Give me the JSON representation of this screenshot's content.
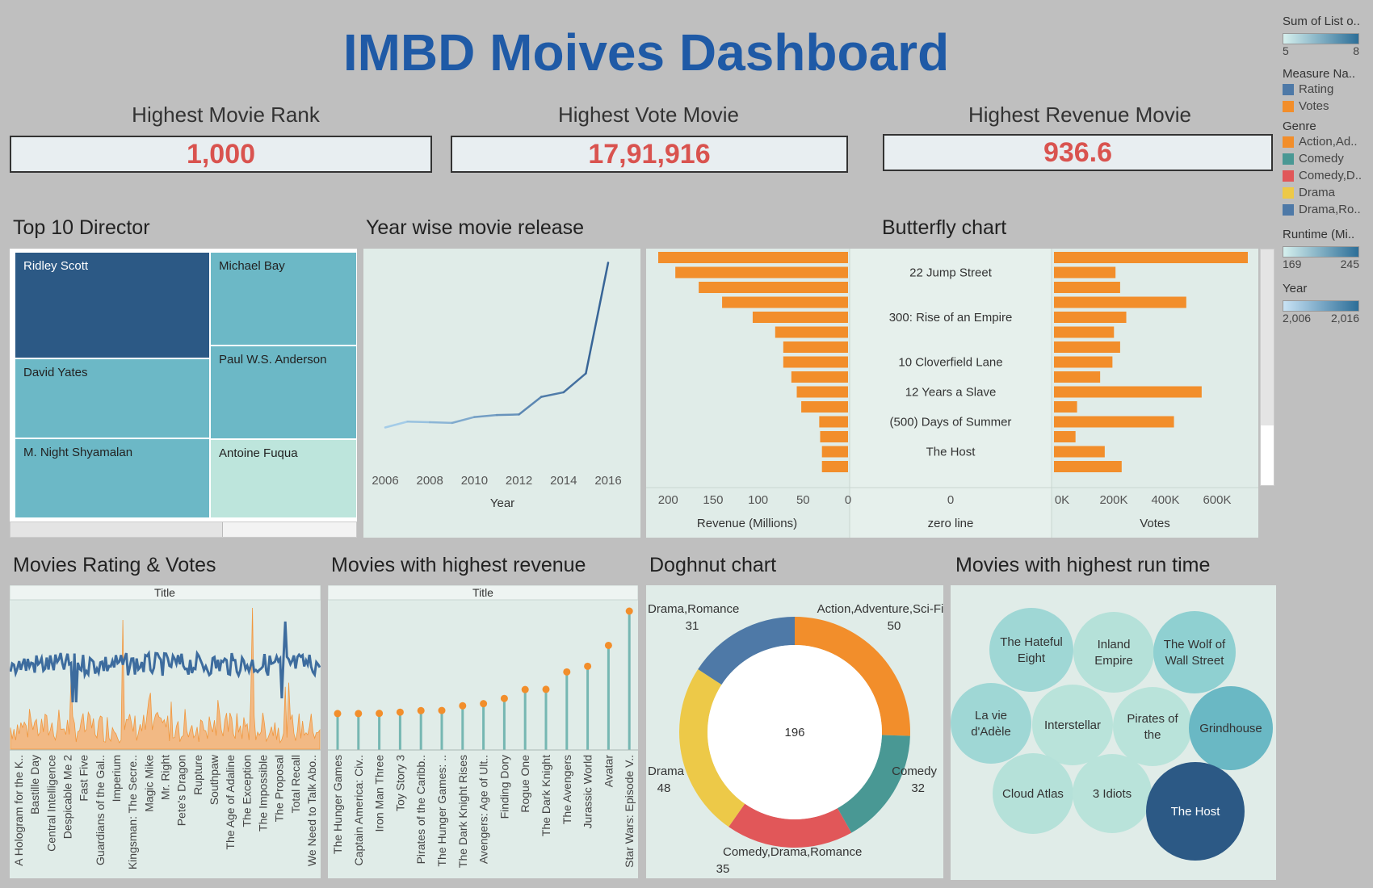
{
  "title": "IMBD Moives Dashboard",
  "kpis": [
    {
      "label": "Highest Movie Rank",
      "value": "1,000"
    },
    {
      "label": "Highest Vote Movie",
      "value": "17,91,916"
    },
    {
      "label": "Highest Revenue Movie",
      "value": "936.6"
    }
  ],
  "sections": {
    "directors": "Top 10 Director",
    "yearwise": "Year wise movie release",
    "butterfly": "Butterfly chart",
    "rating_votes": "Movies Rating & Votes",
    "revenue": "Movies with highest revenue",
    "doughnut": "Doghnut chart",
    "runtime": "Movies with highest run time"
  },
  "legend": {
    "sum_list": {
      "title": "Sum of List o..",
      "min": "5",
      "max": "8"
    },
    "measure": {
      "title": "Measure Na..",
      "items": [
        {
          "label": "Rating",
          "color": "#4e79a7"
        },
        {
          "label": "Votes",
          "color": "#f28e2b"
        }
      ]
    },
    "genre": {
      "title": "Genre",
      "items": [
        {
          "label": "Action,Ad..",
          "color": "#f28e2b"
        },
        {
          "label": "Comedy",
          "color": "#499894"
        },
        {
          "label": "Comedy,D..",
          "color": "#e15759"
        },
        {
          "label": "Drama",
          "color": "#edc948"
        },
        {
          "label": "Drama,Ro..",
          "color": "#4e79a7"
        }
      ]
    },
    "runtime": {
      "title": "Runtime (Mi..",
      "min": "169",
      "max": "245"
    },
    "year": {
      "title": "Year",
      "min": "2,006",
      "max": "2,016"
    }
  },
  "chart_data": [
    {
      "type": "treemap",
      "title": "Top 10 Director",
      "items": [
        {
          "label": "Ridley Scott",
          "color": "#2c5985"
        },
        {
          "label": "Michael Bay",
          "color": "#6cb8c6"
        },
        {
          "label": "David Yates",
          "color": "#6cb8c6"
        },
        {
          "label": "Paul W.S. Anderson",
          "color": "#6cb8c6"
        },
        {
          "label": "M. Night Shyamalan",
          "color": "#6cb8c6"
        },
        {
          "label": "Antoine Fuqua",
          "color": "#bde5dc"
        }
      ]
    },
    {
      "type": "line",
      "title": "Year wise movie release",
      "xlabel": "Year",
      "x": [
        2006,
        2007,
        2008,
        2009,
        2010,
        2011,
        2012,
        2013,
        2014,
        2015,
        2016
      ],
      "y": [
        44,
        53,
        52,
        51,
        60,
        63,
        64,
        91,
        98,
        127,
        297
      ],
      "xticks": [
        "2006",
        "2008",
        "2010",
        "2012",
        "2014",
        "2016"
      ]
    },
    {
      "type": "bar",
      "title": "Butterfly chart",
      "categories": [
        "",
        "22 Jump Street",
        "",
        "",
        "300: Rise of an Empire",
        "",
        "",
        "10 Cloverfield Lane",
        "",
        "12 Years a Slave",
        "",
        "(500) Days of Summer",
        "",
        "The Host",
        ""
      ],
      "revenue": [
        211,
        192,
        166,
        140,
        106,
        81,
        72,
        72,
        63,
        57,
        52,
        32,
        31,
        29,
        29
      ],
      "votes": [
        630,
        200,
        215,
        430,
        235,
        195,
        215,
        190,
        150,
        480,
        75,
        390,
        70,
        165,
        220
      ],
      "left_label": "Revenue (Millions)",
      "center_label": "zero line",
      "right_label": "Votes",
      "left_ticks": [
        "200",
        "150",
        "100",
        "50",
        "0"
      ],
      "center_ticks": [
        "0"
      ],
      "right_ticks": [
        "0K",
        "200K",
        "400K",
        "600K"
      ]
    },
    {
      "type": "line",
      "title": "Movies Rating & Votes",
      "header": "Title",
      "series": [
        {
          "name": "Rating"
        },
        {
          "name": "Votes"
        }
      ],
      "categories": [
        "A Hologram for the K..",
        "Bastille Day",
        "Central Intelligence",
        "Despicable Me 2",
        "Fast Five",
        "Guardians of the Gal..",
        "Imperium",
        "Kingsman: The Secre..",
        "Magic Mike",
        "Mr. Right",
        "Pete's Dragon",
        "Rupture",
        "Southpaw",
        "The Age of Adaline",
        "The Exception",
        "The Impossible",
        "The Proposal",
        "Total Recall",
        "We Need to Talk Abo.."
      ]
    },
    {
      "type": "bar",
      "title": "Movies with highest revenue",
      "header": "Title",
      "categories": [
        "The Hunger Games",
        "Captain America: Civ..",
        "Iron Man Three",
        "Toy Story 3",
        "Pirates of the Caribb..",
        "The Hunger Games: ..",
        "The Dark Knight Rises",
        "Avengers: Age of Ult..",
        "Finding Dory",
        "Rogue One",
        "The Dark Knight",
        "The Avengers",
        "Jurassic World",
        "Avatar",
        "Star Wars: Episode V.."
      ],
      "values": [
        408,
        408,
        409,
        415,
        423,
        424,
        448,
        459,
        486,
        532,
        533,
        623,
        652,
        760,
        937
      ]
    },
    {
      "type": "pie",
      "title": "Doghnut chart",
      "center": "196",
      "slices": [
        {
          "label": "Action,Adventure,Sci-Fi",
          "value": 50,
          "color": "#f28e2b"
        },
        {
          "label": "Comedy",
          "value": 32,
          "color": "#499894"
        },
        {
          "label": "Comedy,Drama,Romance",
          "value": 35,
          "color": "#e15759"
        },
        {
          "label": "Drama",
          "value": 48,
          "color": "#edc948"
        },
        {
          "label": "Drama,Romance",
          "value": 31,
          "color": "#4e79a7"
        }
      ]
    },
    {
      "type": "bubble",
      "title": "Movies with highest run time",
      "bubbles": [
        {
          "label": "The Hateful Eight",
          "color": "#9fd7d5"
        },
        {
          "label": "Inland Empire",
          "color": "#b5e1d9"
        },
        {
          "label": "The Wolf of Wall Street",
          "color": "#8fd0d1"
        },
        {
          "label": "La vie d'Adèle",
          "color": "#9fd7d5"
        },
        {
          "label": "Interstellar",
          "color": "#b9e3da"
        },
        {
          "label": "Pirates of the",
          "color": "#b9e3da"
        },
        {
          "label": "Grindhouse",
          "color": "#6ab8c4"
        },
        {
          "label": "Cloud Atlas",
          "color": "#b5e1d9"
        },
        {
          "label": "3 Idiots",
          "color": "#b9e3da"
        },
        {
          "label": "The Host",
          "color": "#2c5985"
        }
      ]
    }
  ]
}
